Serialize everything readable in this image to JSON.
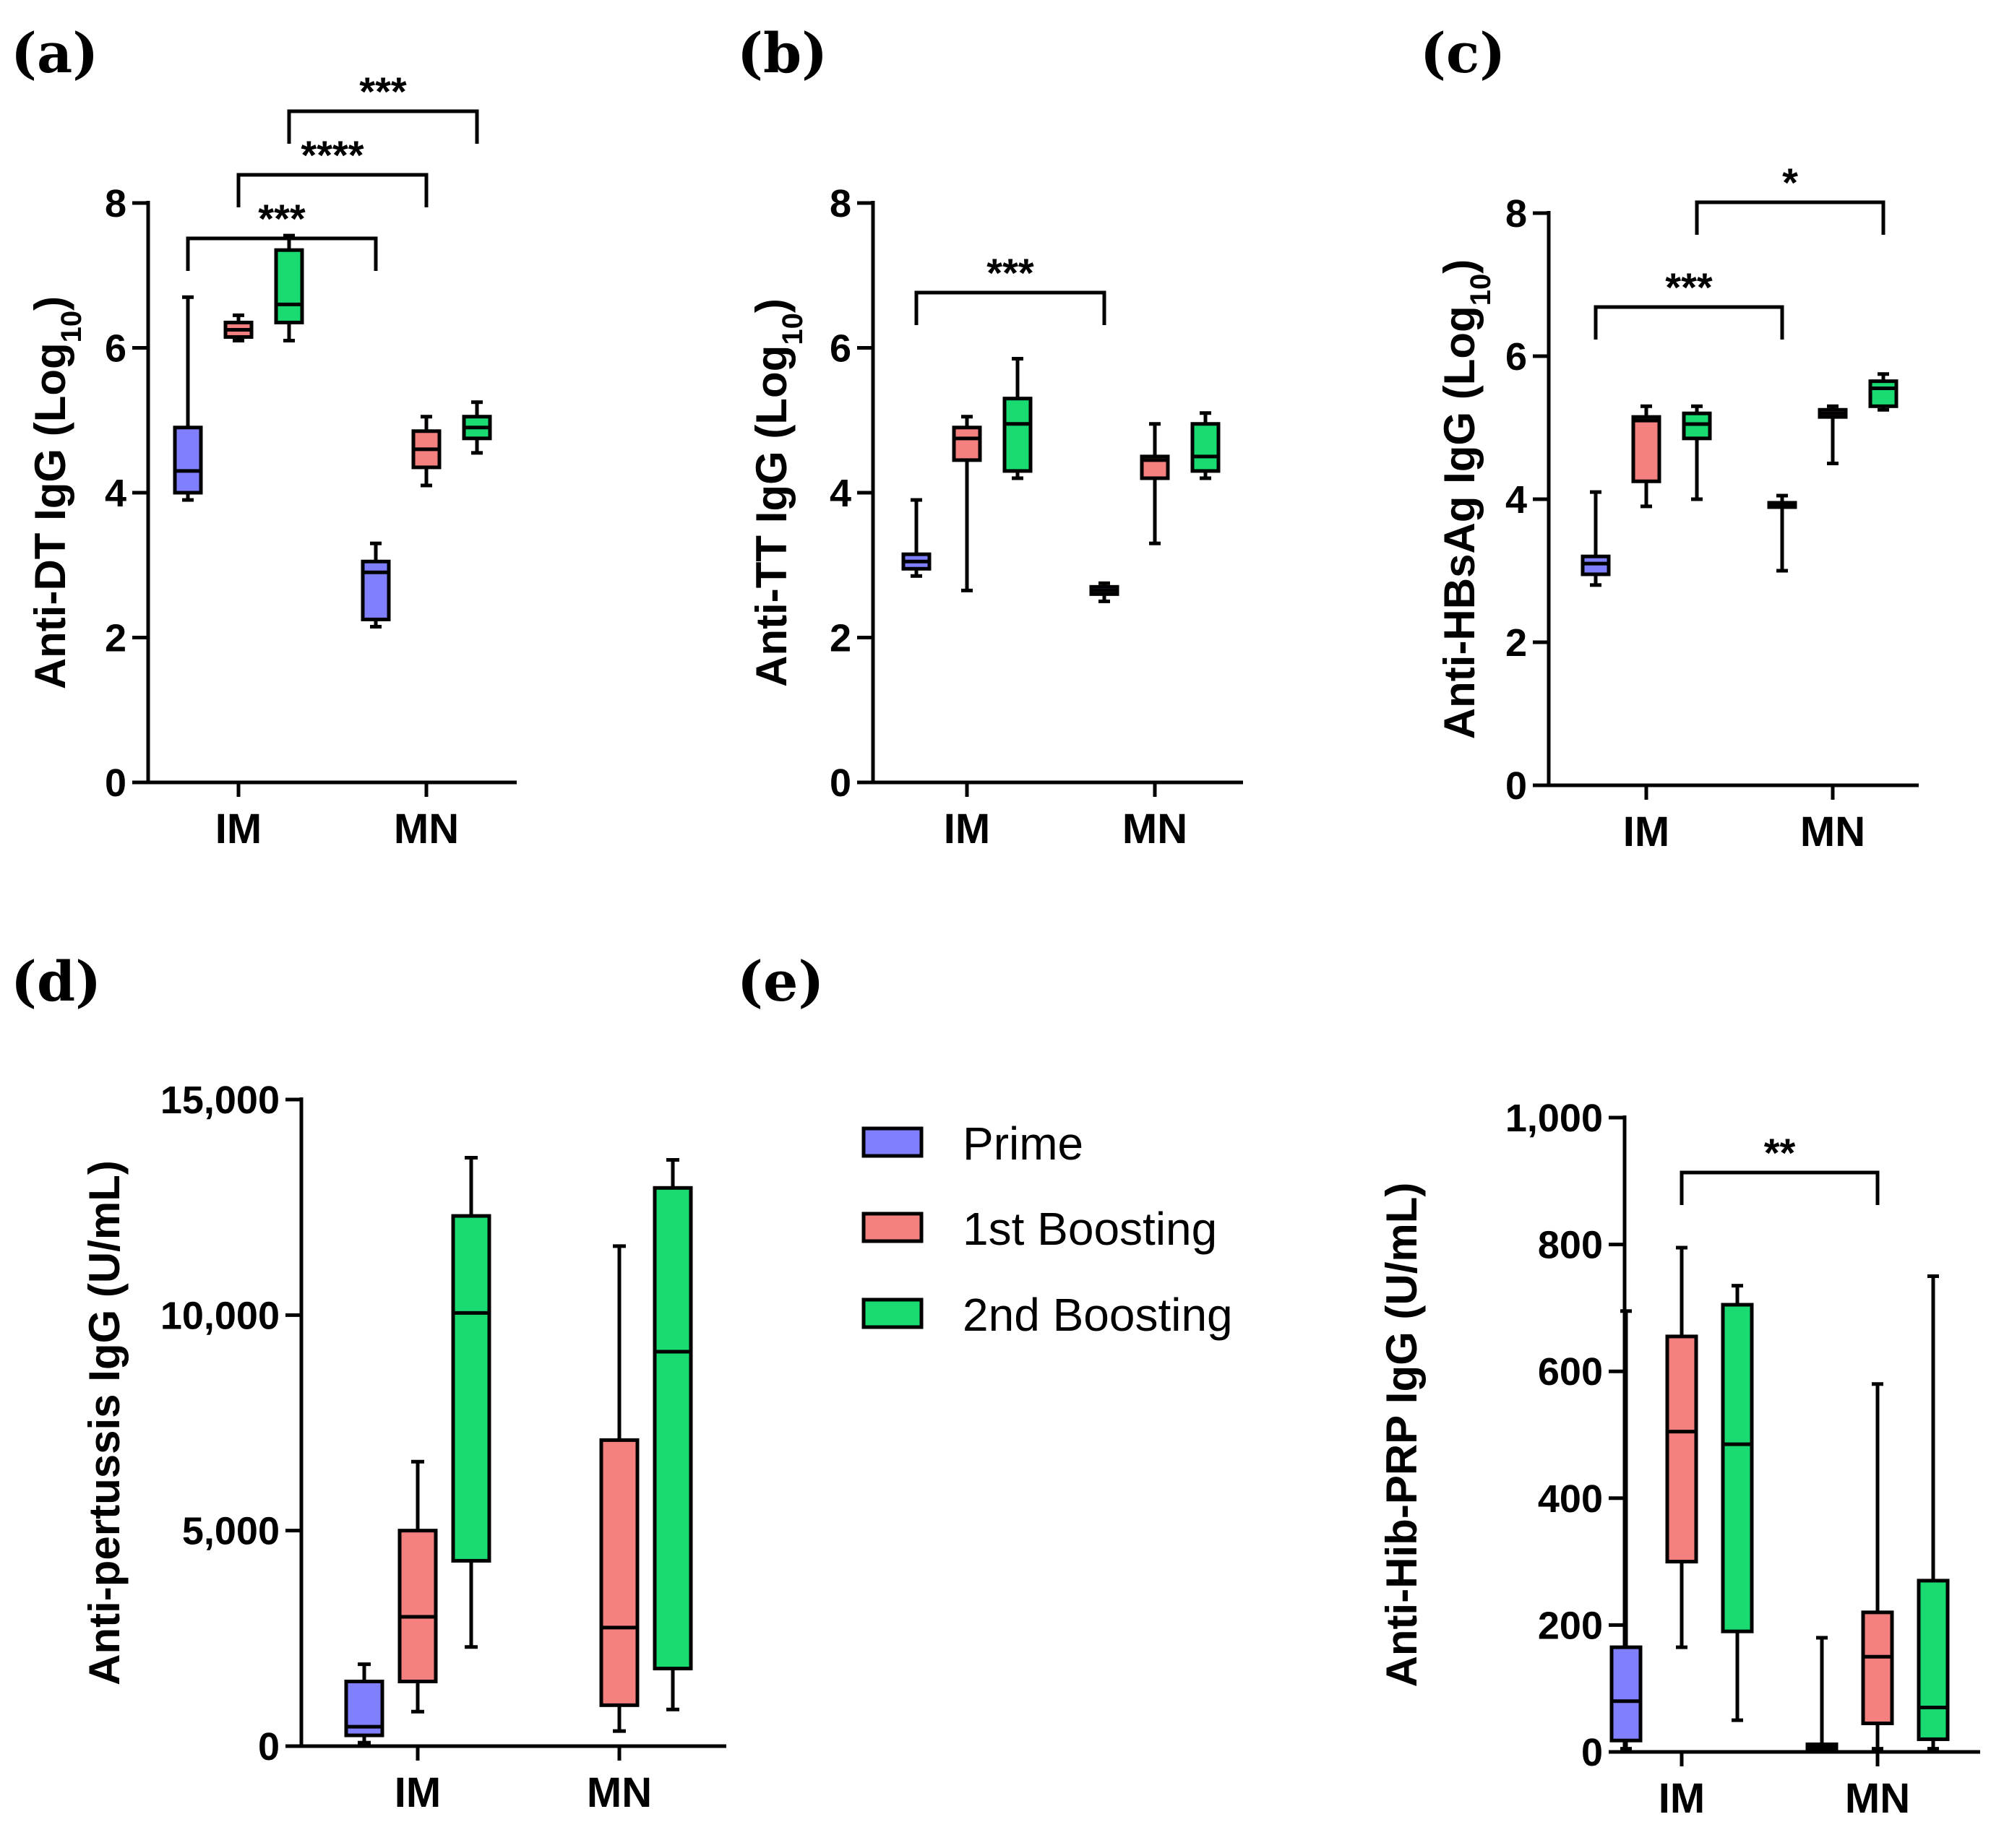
{
  "legend": {
    "items": [
      {
        "label": "Prime",
        "color": "#8080ff"
      },
      {
        "label": "1st Boosting",
        "color": "#f58080"
      },
      {
        "label": "2nd Boosting",
        "color": "#1adb72"
      }
    ]
  },
  "chart_data": [
    {
      "id": "a",
      "panel_label": "(a)",
      "type": "box",
      "ylabel_main": "Anti-DT IgG (Log",
      "ylabel_sub": "10",
      "ylabel_end": ")",
      "ylim": [
        0,
        8
      ],
      "yticks": [
        0,
        2,
        4,
        6,
        8
      ],
      "ytick_labels": [
        "0",
        "2",
        "4",
        "6",
        "8"
      ],
      "categories": [
        "IM",
        "MN"
      ],
      "series": [
        {
          "name": "Prime",
          "boxes": [
            {
              "min": 3.9,
              "q1": 4.0,
              "median": 4.3,
              "q3": 4.9,
              "max": 6.7
            },
            {
              "min": 2.15,
              "q1": 2.25,
              "median": 2.9,
              "q3": 3.05,
              "max": 3.3
            }
          ]
        },
        {
          "name": "1st Boosting",
          "boxes": [
            {
              "min": 6.1,
              "q1": 6.15,
              "median": 6.25,
              "q3": 6.35,
              "max": 6.45
            },
            {
              "min": 4.1,
              "q1": 4.35,
              "median": 4.6,
              "q3": 4.85,
              "max": 5.05
            }
          ]
        },
        {
          "name": "2nd Boosting",
          "boxes": [
            {
              "min": 6.1,
              "q1": 6.35,
              "median": 6.6,
              "q3": 7.35,
              "max": 7.55
            },
            {
              "min": 4.55,
              "q1": 4.75,
              "median": 4.9,
              "q3": 5.05,
              "max": 5.25
            }
          ]
        }
      ],
      "significance": [
        {
          "from": [
            0,
            0
          ],
          "to": [
            1,
            0
          ],
          "label": "***"
        },
        {
          "from": [
            0,
            1
          ],
          "to": [
            1,
            1
          ],
          "label": "****"
        },
        {
          "from": [
            0,
            2
          ],
          "to": [
            1,
            2
          ],
          "label": "***"
        }
      ]
    },
    {
      "id": "b",
      "panel_label": "(b)",
      "type": "box",
      "ylabel_main": "Anti-TT IgG (Log",
      "ylabel_sub": "10",
      "ylabel_end": ")",
      "ylim": [
        0,
        8
      ],
      "yticks": [
        0,
        2,
        4,
        6,
        8
      ],
      "ytick_labels": [
        "0",
        "2",
        "4",
        "6",
        "8"
      ],
      "categories": [
        "IM",
        "MN"
      ],
      "series": [
        {
          "name": "Prime",
          "boxes": [
            {
              "min": 2.85,
              "q1": 2.95,
              "median": 3.05,
              "q3": 3.15,
              "max": 3.9
            },
            {
              "min": 2.5,
              "q1": 2.6,
              "median": 2.65,
              "q3": 2.7,
              "max": 2.75
            }
          ]
        },
        {
          "name": "1st Boosting",
          "boxes": [
            {
              "min": 2.65,
              "q1": 4.45,
              "median": 4.75,
              "q3": 4.9,
              "max": 5.05
            },
            {
              "min": 3.3,
              "q1": 4.2,
              "median": 4.45,
              "q3": 4.5,
              "max": 4.95
            }
          ]
        },
        {
          "name": "2nd Boosting",
          "boxes": [
            {
              "min": 4.2,
              "q1": 4.3,
              "median": 4.95,
              "q3": 5.3,
              "max": 5.85
            },
            {
              "min": 4.2,
              "q1": 4.3,
              "median": 4.5,
              "q3": 4.95,
              "max": 5.1
            }
          ]
        }
      ],
      "significance": [
        {
          "from": [
            0,
            0
          ],
          "to": [
            1,
            0
          ],
          "label": "***"
        }
      ]
    },
    {
      "id": "c",
      "panel_label": "(c)",
      "type": "box",
      "ylabel_main": "Anti-HBsAg IgG (Log",
      "ylabel_sub": "10",
      "ylabel_end": ")",
      "ylim": [
        0,
        8
      ],
      "yticks": [
        0,
        2,
        4,
        6,
        8
      ],
      "ytick_labels": [
        "0",
        "2",
        "4",
        "6",
        "8"
      ],
      "categories": [
        "IM",
        "MN"
      ],
      "series": [
        {
          "name": "Prime",
          "boxes": [
            {
              "min": 2.8,
              "q1": 2.95,
              "median": 3.1,
              "q3": 3.2,
              "max": 4.1
            },
            {
              "min": 3.0,
              "q1": 3.9,
              "median": 3.9,
              "q3": 3.95,
              "max": 4.05
            }
          ]
        },
        {
          "name": "1st Boosting",
          "boxes": [
            {
              "min": 3.9,
              "q1": 4.25,
              "median": 5.1,
              "q3": 5.15,
              "max": 5.3
            },
            {
              "min": 4.5,
              "q1": 5.15,
              "median": 5.2,
              "q3": 5.25,
              "max": 5.3
            }
          ]
        },
        {
          "name": "2nd Boosting",
          "boxes": [
            {
              "min": 4.0,
              "q1": 4.85,
              "median": 5.05,
              "q3": 5.2,
              "max": 5.3
            },
            {
              "min": 5.25,
              "q1": 5.3,
              "median": 5.55,
              "q3": 5.65,
              "max": 5.75
            }
          ]
        }
      ],
      "significance": [
        {
          "from": [
            0,
            0
          ],
          "to": [
            1,
            0
          ],
          "label": "***"
        },
        {
          "from": [
            0,
            2
          ],
          "to": [
            1,
            2
          ],
          "label": "*"
        }
      ]
    },
    {
      "id": "d",
      "panel_label": "(d)",
      "type": "box",
      "ylabel_main": "Anti-pertussis IgG (U/mL)",
      "ylim": [
        0,
        15000
      ],
      "yticks": [
        0,
        5000,
        10000,
        15000
      ],
      "ytick_labels": [
        "0",
        "5,000",
        "10,000",
        "15,000"
      ],
      "categories": [
        "IM",
        "MN"
      ],
      "series": [
        {
          "name": "Prime",
          "boxes": [
            {
              "min": 80,
              "q1": 250,
              "median": 450,
              "q3": 1500,
              "max": 1900
            },
            {
              "min": 0,
              "q1": 0,
              "median": 0,
              "q3": 0,
              "max": 0
            }
          ]
        },
        {
          "name": "1st Boosting",
          "boxes": [
            {
              "min": 800,
              "q1": 1500,
              "median": 3000,
              "q3": 5000,
              "max": 6600
            },
            {
              "min": 350,
              "q1": 950,
              "median": 2750,
              "q3": 7100,
              "max": 11600
            }
          ]
        },
        {
          "name": "2nd Boosting",
          "boxes": [
            {
              "min": 2300,
              "q1": 4300,
              "median": 10050,
              "q3": 12300,
              "max": 13650
            },
            {
              "min": 850,
              "q1": 1800,
              "median": 9150,
              "q3": 12950,
              "max": 13600
            }
          ]
        }
      ],
      "significance": []
    },
    {
      "id": "e",
      "panel_label": "(e)",
      "type": "box",
      "ylabel_main": "Anti-Hib-PRP IgG (U/mL)",
      "ylim": [
        0,
        1000
      ],
      "yticks": [
        0,
        200,
        400,
        600,
        800,
        1000
      ],
      "ytick_labels": [
        "0",
        "200",
        "400",
        "600",
        "800",
        "1,000"
      ],
      "categories": [
        "IM",
        "MN"
      ],
      "series": [
        {
          "name": "Prime",
          "boxes": [
            {
              "min": 5,
              "q1": 18,
              "median": 80,
              "q3": 165,
              "max": 695
            },
            {
              "min": 0,
              "q1": 5,
              "median": 8,
              "q3": 12,
              "max": 180
            }
          ]
        },
        {
          "name": "1st Boosting",
          "boxes": [
            {
              "min": 165,
              "q1": 300,
              "median": 505,
              "q3": 655,
              "max": 795
            },
            {
              "min": 5,
              "q1": 45,
              "median": 150,
              "q3": 220,
              "max": 580
            }
          ]
        },
        {
          "name": "2nd Boosting",
          "boxes": [
            {
              "min": 50,
              "q1": 190,
              "median": 485,
              "q3": 705,
              "max": 735
            },
            {
              "min": 5,
              "q1": 20,
              "median": 70,
              "q3": 270,
              "max": 750
            }
          ]
        }
      ],
      "significance": [
        {
          "from": [
            0,
            1
          ],
          "to": [
            1,
            1
          ],
          "label": "**"
        }
      ]
    }
  ]
}
